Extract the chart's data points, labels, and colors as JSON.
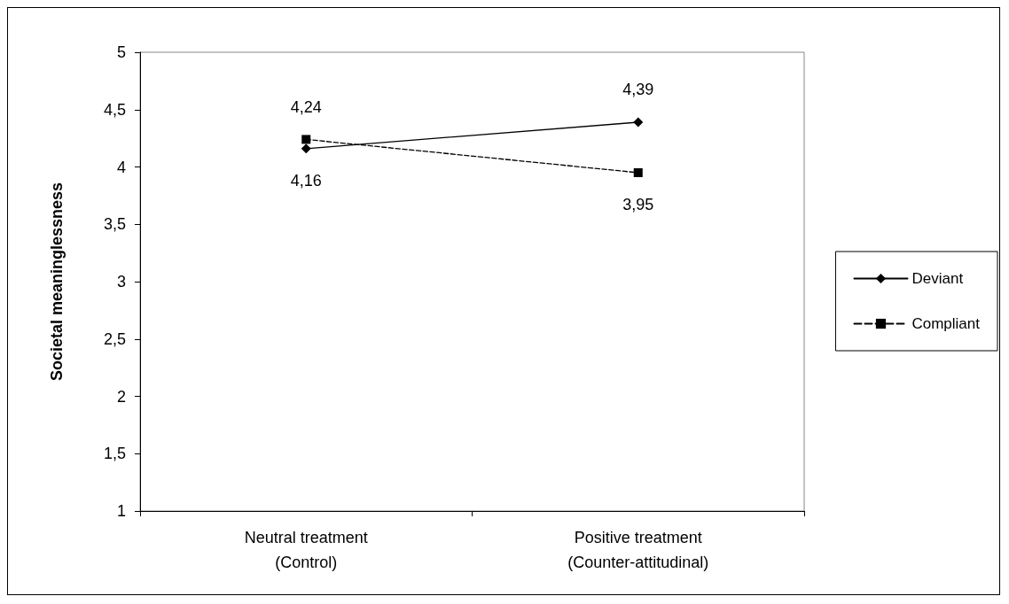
{
  "chart_data": {
    "type": "line",
    "ylabel": "Societal meaninglessness",
    "categories": [
      "Neutral treatment\n(Control)",
      "Positive treatment\n(Counter-attitudinal)"
    ],
    "series": [
      {
        "name": "Deviant",
        "color": "#000000",
        "values": [
          4.16,
          4.39
        ],
        "value_labels": [
          "4,16",
          "4,39"
        ],
        "marker": "diamond",
        "line_style": "solid"
      },
      {
        "name": "Compliant",
        "color": "#000000",
        "values": [
          4.24,
          3.95
        ],
        "value_labels": [
          "4,24",
          "3,95"
        ],
        "marker": "square",
        "line_style": "dashed"
      }
    ],
    "ylim": [
      1,
      5
    ],
    "yticks": [
      1,
      {
        "value": 1.5,
        "label": "1,5"
      },
      2,
      {
        "value": 2.5,
        "label": "2,5"
      },
      3,
      {
        "value": 3.5,
        "label": "3,5"
      },
      4,
      {
        "value": 4.5,
        "label": "4,5"
      },
      5
    ],
    "grid": false,
    "legend": "right"
  }
}
